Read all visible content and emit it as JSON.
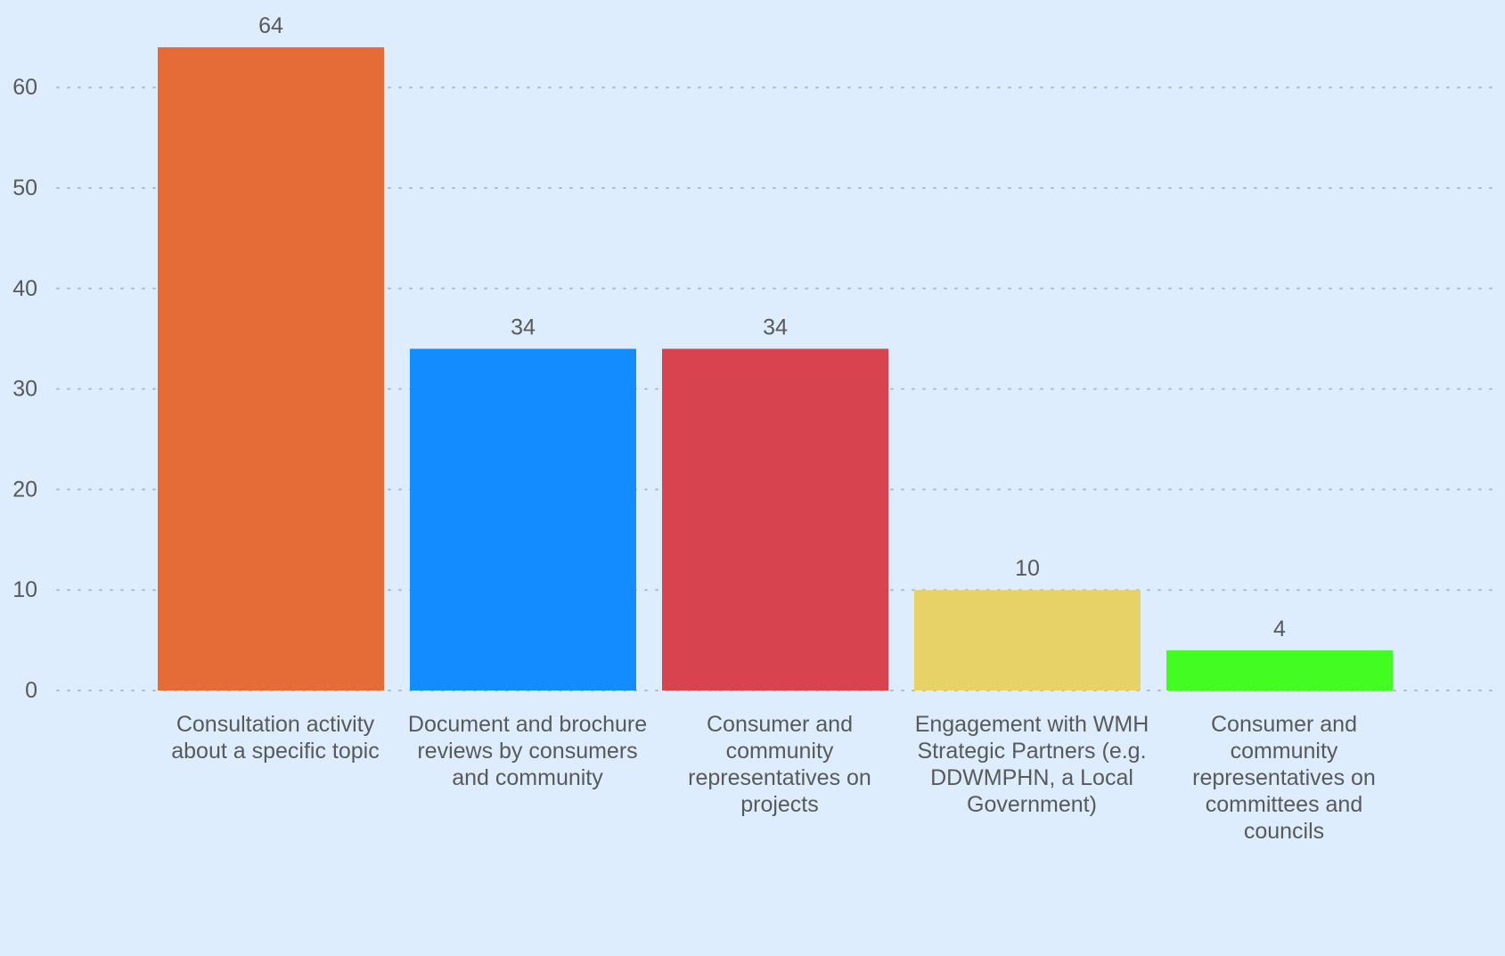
{
  "chart_data": {
    "type": "bar",
    "title": "",
    "xlabel": "",
    "ylabel": "",
    "ylim": [
      0,
      68
    ],
    "yticks": [
      0,
      10,
      20,
      30,
      40,
      50,
      60
    ],
    "grid": true,
    "legend": "none",
    "categories": [
      "Consultation activity about a specific topic",
      "Document and brochure reviews by consumers and community",
      "Consumer and community representatives on projects",
      "Engagement with WMH Strategic Partners (e.g. DDWMPHN, a Local Government)",
      "Consumer and community representatives on committees and councils"
    ],
    "category_label_lines": [
      [
        "Consultation activity",
        "about a specific topic"
      ],
      [
        "Document and brochure",
        "reviews by consumers",
        "and community"
      ],
      [
        "Consumer and",
        "community",
        "representatives on",
        "projects"
      ],
      [
        "Engagement with WMH",
        "Strategic Partners (e.g.",
        "DDWMPHN, a Local",
        "Government)"
      ],
      [
        "Consumer and",
        "community",
        "representatives on",
        "committees and",
        "councils"
      ]
    ],
    "values": [
      64,
      34,
      34,
      10,
      4
    ],
    "colors": [
      "#e56c37",
      "#128cfe",
      "#d7444f",
      "#e7d268",
      "#43fc21"
    ]
  },
  "background": "#ddedfd"
}
